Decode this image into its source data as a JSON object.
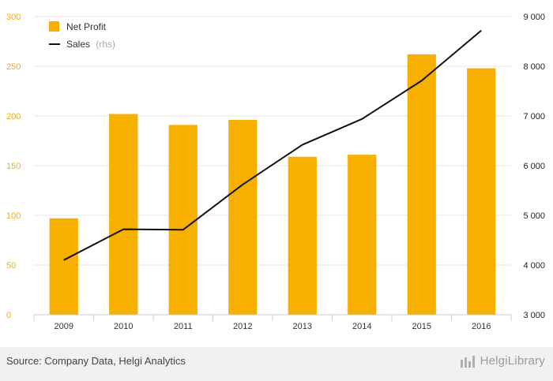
{
  "chart_data": {
    "type": "bar",
    "categories": [
      "2009",
      "2010",
      "2011",
      "2012",
      "2013",
      "2014",
      "2015",
      "2016"
    ],
    "series": [
      {
        "name": "Net Profit",
        "kind": "bar",
        "axis": "left",
        "color": "#f7b000",
        "values": [
          97,
          202,
          191,
          196,
          159,
          161,
          262,
          248
        ]
      },
      {
        "name": "Sales",
        "kind": "line",
        "axis": "right",
        "color": "#111111",
        "values": [
          4100,
          4720,
          4710,
          5620,
          6420,
          6940,
          7710,
          8720
        ]
      }
    ],
    "legend": {
      "net_profit": "Net Profit",
      "sales": "Sales",
      "sales_suffix": "(rhs)",
      "position": "top-left"
    },
    "y_left": {
      "range": [
        0,
        300
      ],
      "ticks": [
        0,
        50,
        100,
        150,
        200,
        250,
        300
      ],
      "tick_labels": [
        "0",
        "50",
        "100",
        "150",
        "200",
        "250",
        "300"
      ],
      "color": "#f7b000"
    },
    "y_right": {
      "range": [
        3000,
        9000
      ],
      "ticks": [
        3000,
        4000,
        5000,
        6000,
        7000,
        8000,
        9000
      ],
      "tick_labels": [
        "3 000",
        "4 000",
        "5 000",
        "6 000",
        "7 000",
        "8 000",
        "9 000"
      ]
    },
    "grid": true
  },
  "footer": {
    "source": "Source: Company Data, Helgi Analytics",
    "brand": "HelgiLibrary"
  },
  "colors": {
    "bar": "#f7b000",
    "line": "#111111",
    "grid": "#e6e6e6",
    "footer_bg": "#f1f1f1"
  }
}
